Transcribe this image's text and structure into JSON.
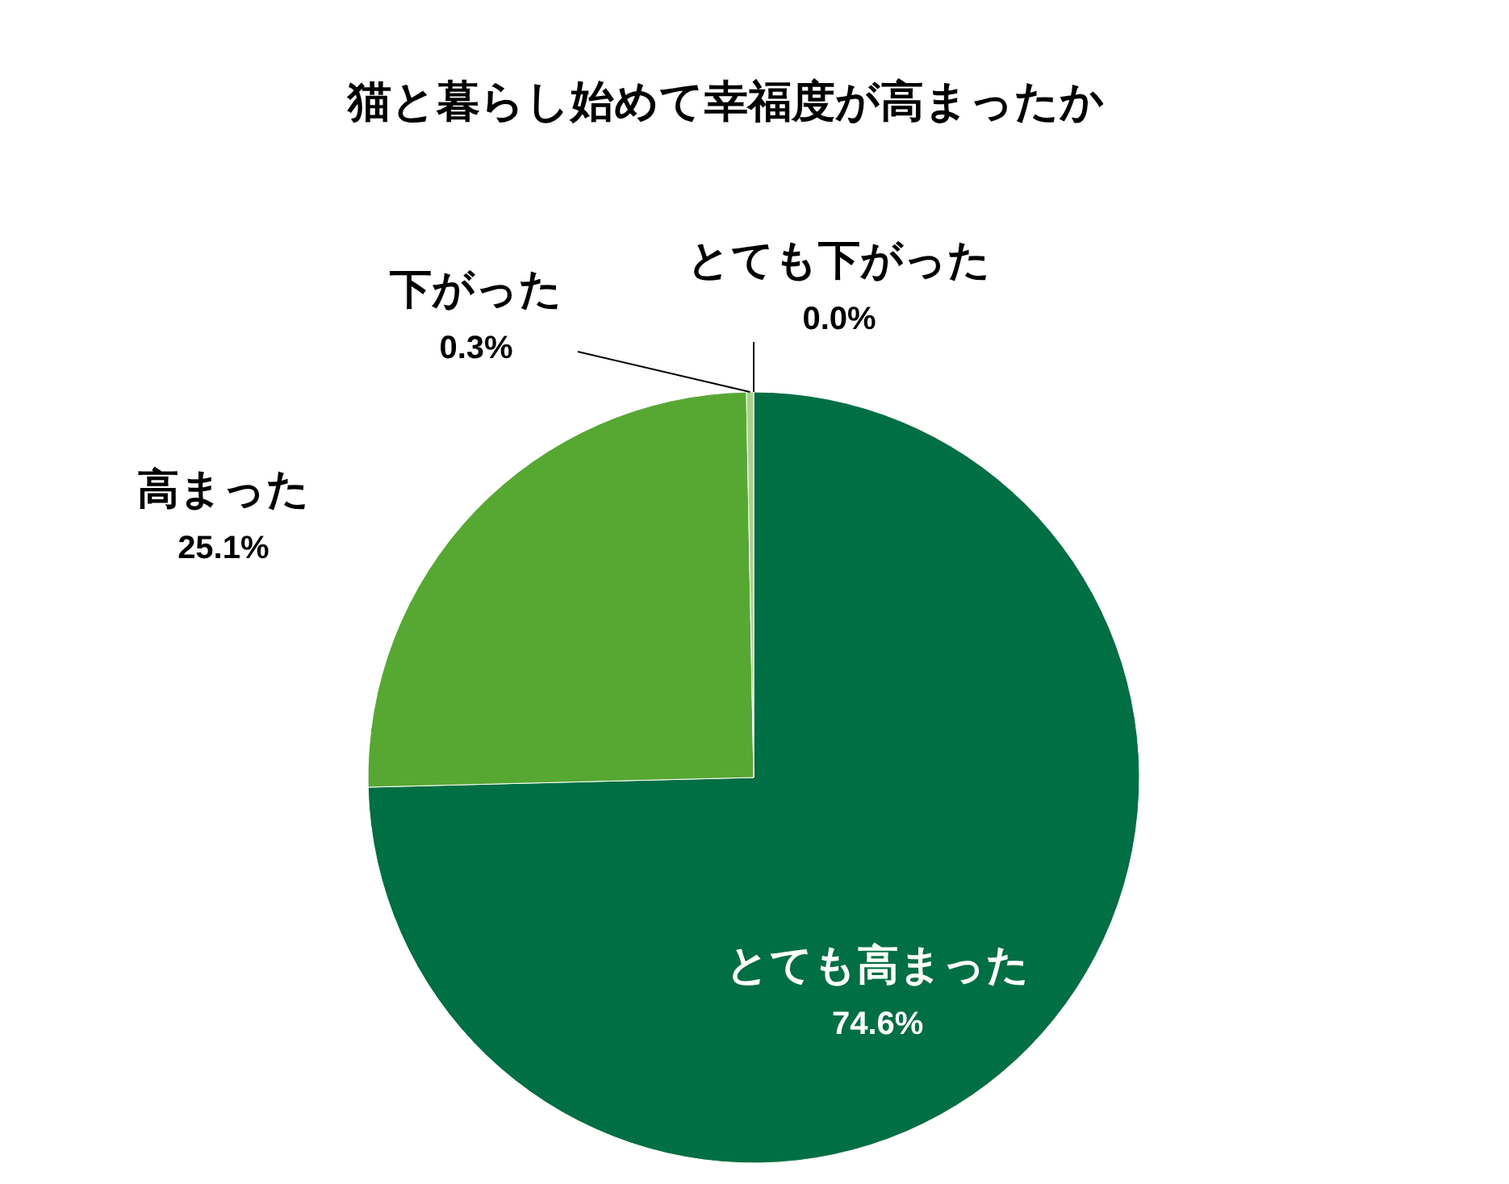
{
  "chart_data": {
    "type": "pie",
    "title": "猫と暮らし始めて幸福度が高まったか",
    "categories": [
      "とても高まった",
      "高まった",
      "下がった",
      "とても下がった"
    ],
    "values": [
      74.6,
      25.1,
      0.3,
      0.0
    ],
    "colors": [
      "#006f44",
      "#56a833",
      "#a9d18e",
      "#d9ead3"
    ],
    "value_labels": [
      "74.6%",
      "25.1%",
      "0.3%",
      "0.0%"
    ]
  }
}
